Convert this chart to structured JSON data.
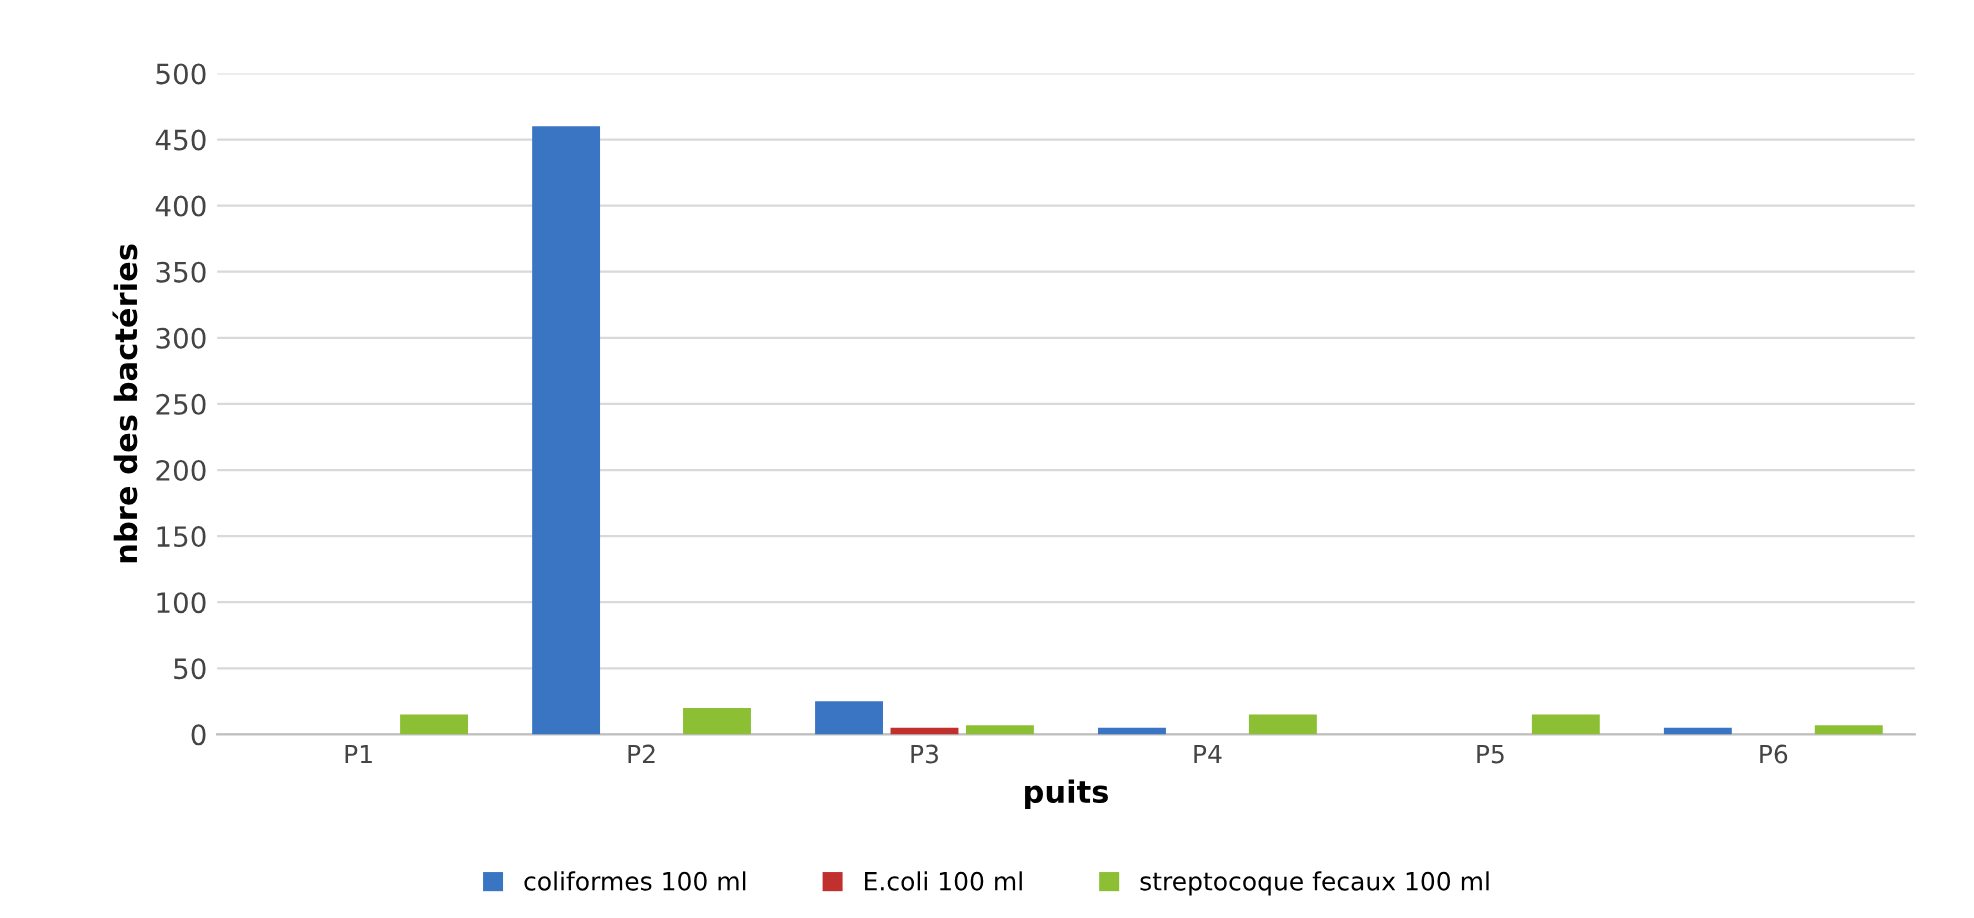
{
  "chart_data": {
    "type": "bar",
    "xlabel": "puits",
    "ylabel": "nbre des bactéries",
    "categories": [
      "P1",
      "P2",
      "P3",
      "P4",
      "P5",
      "P6"
    ],
    "series": [
      {
        "name": "coliformes 100 ml",
        "color": "#3a75c4",
        "values": [
          0,
          460,
          25,
          5,
          0,
          5
        ]
      },
      {
        "name": "E.coli 100 ml",
        "color": "#c0302c",
        "values": [
          0,
          0,
          5,
          0,
          0,
          0
        ]
      },
      {
        "name": "streptocoque fecaux 100 ml",
        "color": "#8cbf34",
        "values": [
          15,
          20,
          7,
          15,
          15,
          7
        ]
      }
    ],
    "ylim": [
      0,
      500
    ],
    "yticks": [
      0,
      50,
      100,
      150,
      200,
      250,
      300,
      350,
      400,
      450,
      500
    ],
    "grid": "y",
    "legend": "bottom"
  }
}
